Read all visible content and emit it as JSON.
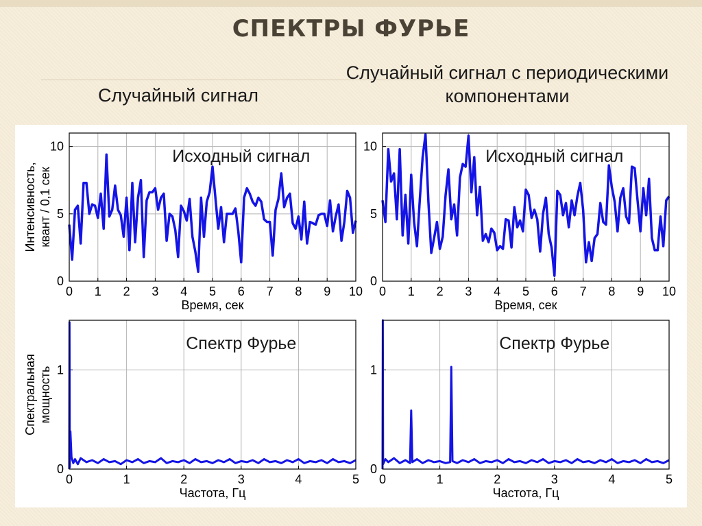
{
  "slide": {
    "title": "СПЕКТРЫ ФУРЬЕ",
    "subtitle_left": "Случайный сигнал",
    "subtitle_right": "Случайный сигнал с периодическими компонентами"
  },
  "colors": {
    "line": "#1414e6",
    "grid": "#b4b4b4",
    "background": "#f6edd9"
  },
  "chart_data": [
    {
      "type": "line",
      "title": "Исходный сигнал",
      "xlabel": "Время, сек",
      "ylabel": "Интенсивность, квант / 0,1 сек",
      "xlim": [
        0,
        10
      ],
      "ylim": [
        0,
        11
      ],
      "xticks": [
        "0",
        "1",
        "2",
        "3",
        "4",
        "5",
        "6",
        "7",
        "8",
        "9",
        "10"
      ],
      "yticks": [
        "0",
        "5",
        "10"
      ],
      "grid": true,
      "series": [
        {
          "values": [
            4.2,
            1.6,
            5.3,
            5.6,
            2.8,
            7.3,
            7.3,
            5.0,
            5.7,
            5.6,
            4.7,
            6.5,
            3.9,
            9.4,
            4.8,
            5.3,
            7.1,
            5.3,
            4.9,
            3.3,
            6.2,
            2.3,
            7.3,
            2.9,
            6.2,
            7.5,
            1.8,
            6.0,
            6.6,
            6.6,
            6.9,
            5.3,
            6.2,
            6.5,
            3.0,
            5.0,
            4.8,
            3.8,
            1.8,
            5.6,
            5.2,
            4.5,
            6.1,
            3.3,
            2.2,
            0.7,
            6.2,
            3.3,
            5.9,
            6.6,
            8.5,
            6.2,
            3.9,
            5.5,
            2.9,
            5.0,
            5.0,
            5.0,
            5.4,
            3.7,
            1.4,
            6.2,
            6.9,
            6.5,
            5.9,
            5.6,
            6.2,
            5.9,
            4.6,
            4.4,
            4.4,
            1.9,
            5.3,
            6.1,
            8.0,
            5.5,
            6.2,
            6.5,
            4.3,
            3.9,
            4.8,
            3.1,
            5.9,
            2.8,
            4.4,
            4.3,
            4.2,
            4.9,
            5.0,
            5.0,
            4.1,
            6.0,
            3.7,
            4.8,
            5.7,
            3.0,
            4.4,
            6.7,
            6.2,
            3.6,
            4.5
          ]
        }
      ]
    },
    {
      "type": "line",
      "title": "Исходный сигнал",
      "xlabel": "Время, сек",
      "ylabel": "",
      "xlim": [
        0,
        10
      ],
      "ylim": [
        0,
        11
      ],
      "xticks": [
        "0",
        "1",
        "2",
        "3",
        "4",
        "5",
        "6",
        "7",
        "8",
        "9",
        "10"
      ],
      "yticks": [
        "0",
        "5",
        "10"
      ],
      "grid": true,
      "series": [
        {
          "values": [
            6.0,
            4.4,
            9.8,
            7.4,
            8.0,
            4.6,
            9.8,
            3.4,
            6.4,
            2.8,
            7.9,
            4.4,
            2.6,
            6.0,
            9.2,
            10.9,
            5.9,
            2.1,
            3.2,
            4.4,
            2.4,
            3.3,
            6.4,
            8.3,
            4.6,
            5.7,
            3.4,
            7.7,
            8.7,
            8.5,
            10.8,
            6.6,
            9.2,
            4.9,
            7.0,
            3.0,
            3.5,
            2.9,
            3.9,
            3.6,
            2.3,
            2.6,
            2.4,
            4.6,
            4.5,
            2.5,
            5.5,
            4.0,
            4.5,
            3.7,
            6.8,
            6.4,
            4.7,
            5.3,
            4.6,
            2.2,
            5.0,
            6.2,
            3.5,
            2.5,
            0.4,
            6.7,
            6.4,
            4.9,
            5.8,
            4.0,
            6.0,
            4.9,
            6.3,
            7.3,
            5.3,
            1.4,
            2.9,
            1.5,
            3.2,
            3.5,
            5.8,
            4.4,
            4.2,
            8.6,
            7.0,
            5.9,
            3.7,
            6.2,
            6.9,
            4.8,
            4.3,
            8.5,
            8.4,
            6.0,
            3.7,
            6.9,
            4.9,
            7.6,
            3.2,
            2.3,
            2.3,
            4.8,
            2.6,
            6.0,
            6.3
          ]
        }
      ]
    },
    {
      "type": "line",
      "title": "Спектр Фурье",
      "xlabel": "Частота, Гц",
      "ylabel": "Спектральная мощность",
      "xlim": [
        0,
        5
      ],
      "ylim": [
        0,
        1.5
      ],
      "xticks": [
        "0",
        "1",
        "2",
        "3",
        "4",
        "5"
      ],
      "yticks": [
        "0",
        "1"
      ],
      "grid": true,
      "series": [
        {
          "x": [
            0,
            0.005,
            0.01,
            0.02,
            0.04,
            0.07,
            0.1,
            0.15,
            0.2,
            0.3,
            0.4,
            0.5,
            0.6,
            0.7,
            0.8,
            0.9,
            1.0,
            1.1,
            1.2,
            1.3,
            1.4,
            1.5,
            1.6,
            1.7,
            1.8,
            1.9,
            2.0,
            2.1,
            2.2,
            2.3,
            2.4,
            2.5,
            2.6,
            2.7,
            2.8,
            2.9,
            3.0,
            3.1,
            3.2,
            3.3,
            3.4,
            3.5,
            3.6,
            3.7,
            3.8,
            3.9,
            4.0,
            4.1,
            4.2,
            4.3,
            4.4,
            4.5,
            4.6,
            4.7,
            4.8,
            4.9,
            5.0
          ],
          "values": [
            0.0,
            1.48,
            0.02,
            0.38,
            0.12,
            0.06,
            0.1,
            0.05,
            0.11,
            0.07,
            0.09,
            0.06,
            0.1,
            0.07,
            0.08,
            0.05,
            0.09,
            0.07,
            0.1,
            0.06,
            0.08,
            0.07,
            0.11,
            0.06,
            0.08,
            0.07,
            0.09,
            0.06,
            0.1,
            0.07,
            0.08,
            0.06,
            0.09,
            0.07,
            0.1,
            0.06,
            0.08,
            0.07,
            0.09,
            0.06,
            0.1,
            0.07,
            0.08,
            0.06,
            0.09,
            0.07,
            0.1,
            0.06,
            0.08,
            0.07,
            0.09,
            0.06,
            0.1,
            0.07,
            0.08,
            0.06,
            0.09
          ]
        }
      ]
    },
    {
      "type": "line",
      "title": "Спектр Фурье",
      "xlabel": "Частота, Гц",
      "ylabel": "",
      "xlim": [
        0,
        5
      ],
      "ylim": [
        0,
        1.5
      ],
      "xticks": [
        "0",
        "1",
        "2",
        "3",
        "4",
        "5"
      ],
      "yticks": [
        "0",
        "1"
      ],
      "grid": true,
      "series": [
        {
          "x": [
            0,
            0.005,
            0.01,
            0.05,
            0.1,
            0.2,
            0.3,
            0.4,
            0.48,
            0.5,
            0.52,
            0.6,
            0.7,
            0.8,
            0.9,
            1.0,
            1.1,
            1.18,
            1.2,
            1.22,
            1.3,
            1.4,
            1.5,
            1.6,
            1.7,
            1.8,
            1.9,
            2.0,
            2.1,
            2.2,
            2.3,
            2.4,
            2.5,
            2.6,
            2.7,
            2.8,
            2.9,
            3.0,
            3.1,
            3.2,
            3.3,
            3.4,
            3.5,
            3.6,
            3.7,
            3.8,
            3.9,
            4.0,
            4.1,
            4.2,
            4.3,
            4.4,
            4.5,
            4.6,
            4.7,
            4.8,
            4.9,
            5.0
          ],
          "values": [
            0.0,
            1.5,
            0.05,
            0.1,
            0.07,
            0.11,
            0.06,
            0.09,
            0.06,
            0.59,
            0.07,
            0.1,
            0.06,
            0.09,
            0.07,
            0.08,
            0.06,
            0.07,
            1.03,
            0.08,
            0.06,
            0.09,
            0.07,
            0.1,
            0.06,
            0.08,
            0.07,
            0.09,
            0.06,
            0.1,
            0.07,
            0.08,
            0.06,
            0.09,
            0.07,
            0.1,
            0.06,
            0.08,
            0.07,
            0.09,
            0.06,
            0.1,
            0.07,
            0.08,
            0.06,
            0.09,
            0.07,
            0.1,
            0.06,
            0.08,
            0.07,
            0.09,
            0.06,
            0.1,
            0.07,
            0.08,
            0.06,
            0.09
          ]
        }
      ]
    }
  ]
}
